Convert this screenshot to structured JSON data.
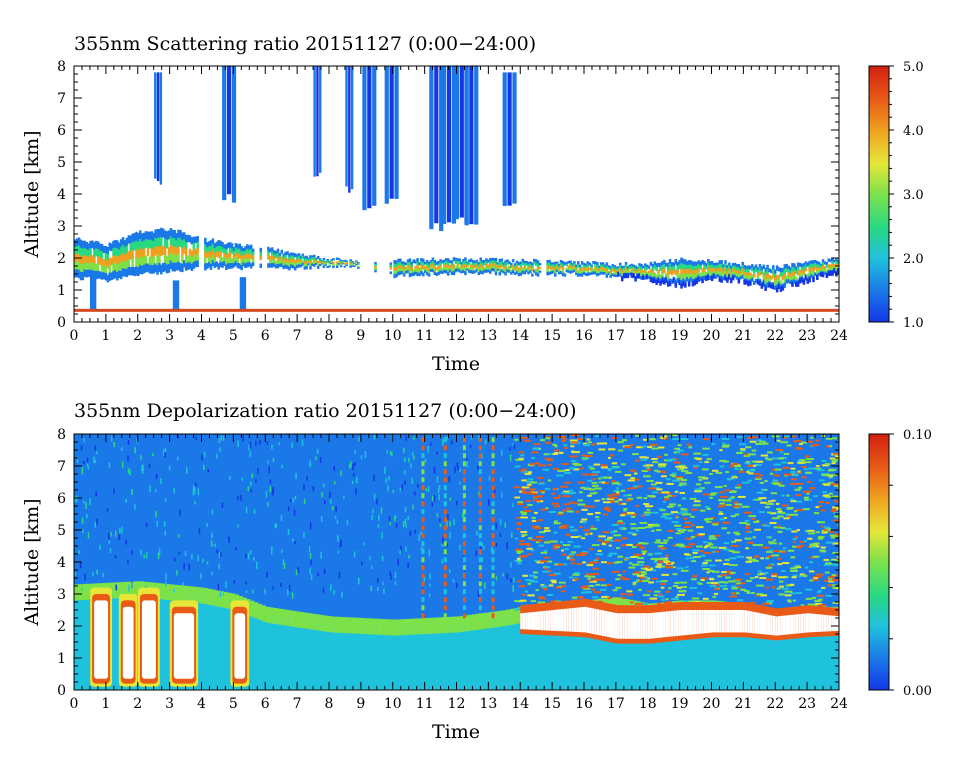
{
  "colors": {
    "scale": [
      "#1436e6",
      "#1a78e8",
      "#1fc2dc",
      "#29d982",
      "#7de24a",
      "#e6e638",
      "#f0a020",
      "#e85a16",
      "#d21e10"
    ],
    "axis": "#000000",
    "ground_line": "#d24a1e",
    "background": "#ffffff"
  },
  "chart_data": [
    {
      "type": "heatmap",
      "title": "355nm Scattering ratio  20151127 (0:00−24:00)",
      "xlabel": "Time",
      "ylabel": "Altitude [km]",
      "xlim": [
        0,
        24
      ],
      "ylim": [
        0,
        8
      ],
      "x_ticks": [
        "0",
        "1",
        "2",
        "3",
        "4",
        "5",
        "6",
        "7",
        "8",
        "9",
        "10",
        "11",
        "12",
        "13",
        "14",
        "15",
        "16",
        "17",
        "18",
        "19",
        "20",
        "21",
        "22",
        "23",
        "24"
      ],
      "y_ticks": [
        "0",
        "1",
        "2",
        "3",
        "4",
        "5",
        "6",
        "7",
        "8"
      ],
      "colorbar": {
        "min": 1.0,
        "max": 5.0,
        "ticks": [
          "1.0",
          "2.0",
          "3.0",
          "4.0",
          "5.0"
        ]
      },
      "layer_top_km": [
        [
          0,
          2.6
        ],
        [
          1,
          2.4
        ],
        [
          2,
          2.8
        ],
        [
          3,
          2.9
        ],
        [
          4,
          2.6
        ],
        [
          5,
          2.4
        ],
        [
          6,
          2.3
        ],
        [
          7,
          2.1
        ],
        [
          8,
          1.95
        ],
        [
          9,
          1.9
        ],
        [
          10,
          1.9
        ],
        [
          11,
          1.95
        ],
        [
          12,
          1.95
        ],
        [
          13,
          1.95
        ],
        [
          14,
          1.9
        ],
        [
          15,
          1.9
        ],
        [
          16,
          1.85
        ],
        [
          17,
          1.8
        ],
        [
          18,
          1.8
        ],
        [
          19,
          1.95
        ],
        [
          20,
          1.9
        ],
        [
          21,
          1.8
        ],
        [
          22,
          1.7
        ],
        [
          23,
          1.85
        ],
        [
          24,
          1.95
        ]
      ],
      "layer_base_km": [
        [
          0,
          1.4
        ],
        [
          1,
          1.3
        ],
        [
          2,
          1.5
        ],
        [
          3,
          1.6
        ],
        [
          4,
          1.7
        ],
        [
          5,
          1.7
        ],
        [
          6,
          1.7
        ],
        [
          7,
          1.7
        ],
        [
          8,
          1.75
        ],
        [
          9,
          1.75
        ],
        [
          10,
          1.45
        ],
        [
          11,
          1.5
        ],
        [
          12,
          1.55
        ],
        [
          13,
          1.55
        ],
        [
          14,
          1.5
        ],
        [
          15,
          1.5
        ],
        [
          16,
          1.5
        ],
        [
          17,
          1.45
        ],
        [
          18,
          1.35
        ],
        [
          19,
          1.2
        ],
        [
          20,
          1.4
        ],
        [
          21,
          1.3
        ],
        [
          22,
          1.05
        ],
        [
          23,
          1.35
        ],
        [
          24,
          1.6
        ]
      ],
      "high_cloud_streaks": [
        {
          "time": 2.6,
          "bottom_km": 4.2,
          "top_km": 7.8
        },
        {
          "time": 4.8,
          "bottom_km": 3.7,
          "top_km": 8.0
        },
        {
          "time": 7.6,
          "bottom_km": 4.5,
          "top_km": 8.0
        },
        {
          "time": 8.6,
          "bottom_km": 4.0,
          "top_km": 8.0
        },
        {
          "time": 9.2,
          "bottom_km": 3.4,
          "top_km": 8.0
        },
        {
          "time": 9.9,
          "bottom_km": 3.6,
          "top_km": 8.0
        },
        {
          "time": 11.3,
          "bottom_km": 2.8,
          "top_km": 8.0
        },
        {
          "time": 11.7,
          "bottom_km": 3.0,
          "top_km": 8.0
        },
        {
          "time": 12.1,
          "bottom_km": 3.0,
          "top_km": 8.0
        },
        {
          "time": 12.4,
          "bottom_km": 3.0,
          "top_km": 8.0
        },
        {
          "time": 13.6,
          "bottom_km": 3.6,
          "top_km": 7.8
        }
      ],
      "surface_line_km": 0.38
    },
    {
      "type": "heatmap",
      "title": "355nm Depolarization ratio  20151127 (0:00−24:00)",
      "xlabel": "Time",
      "ylabel": "Altitude [km]",
      "xlim": [
        0,
        24
      ],
      "ylim": [
        0,
        8
      ],
      "x_ticks": [
        "0",
        "1",
        "2",
        "3",
        "4",
        "5",
        "6",
        "7",
        "8",
        "9",
        "10",
        "11",
        "12",
        "13",
        "14",
        "15",
        "16",
        "17",
        "18",
        "19",
        "20",
        "21",
        "22",
        "23",
        "24"
      ],
      "y_ticks": [
        "0",
        "1",
        "2",
        "3",
        "4",
        "5",
        "6",
        "7",
        "8"
      ],
      "colorbar": {
        "min": 0.0,
        "max": 0.1,
        "ticks": [
          "0.00",
          "0.10"
        ]
      },
      "boundary_layer_top_km": [
        [
          0,
          3.1
        ],
        [
          2,
          3.2
        ],
        [
          4,
          3.0
        ],
        [
          5,
          2.8
        ],
        [
          6,
          2.4
        ],
        [
          8,
          2.1
        ],
        [
          10,
          2.0
        ],
        [
          12,
          2.1
        ],
        [
          13.5,
          2.3
        ],
        [
          14,
          2.4
        ],
        [
          16,
          2.6
        ],
        [
          17,
          2.7
        ],
        [
          18,
          2.5
        ],
        [
          19,
          2.6
        ],
        [
          20,
          2.6
        ],
        [
          21,
          2.5
        ],
        [
          22,
          2.3
        ],
        [
          23,
          2.4
        ],
        [
          24,
          2.4
        ]
      ],
      "dust_layer_top_km": [
        [
          14,
          2.4
        ],
        [
          15,
          2.5
        ],
        [
          16,
          2.6
        ],
        [
          17,
          2.4
        ],
        [
          18,
          2.4
        ],
        [
          19,
          2.5
        ],
        [
          20,
          2.5
        ],
        [
          21,
          2.5
        ],
        [
          22,
          2.3
        ],
        [
          23,
          2.4
        ],
        [
          24,
          2.3
        ]
      ],
      "dust_layer_base_km": [
        [
          14,
          1.9
        ],
        [
          15,
          1.85
        ],
        [
          16,
          1.8
        ],
        [
          17,
          1.6
        ],
        [
          18,
          1.6
        ],
        [
          19,
          1.7
        ],
        [
          20,
          1.8
        ],
        [
          21,
          1.8
        ],
        [
          22,
          1.7
        ],
        [
          23,
          1.8
        ],
        [
          24,
          1.85
        ]
      ],
      "high_depol_columns": [
        {
          "time_start": 0.6,
          "time_end": 1.1,
          "top_km": 3.0
        },
        {
          "time_start": 1.5,
          "time_end": 1.9,
          "top_km": 2.8
        },
        {
          "time_start": 2.1,
          "time_end": 2.6,
          "top_km": 3.0
        },
        {
          "time_start": 3.1,
          "time_end": 3.8,
          "top_km": 2.6
        },
        {
          "time_start": 5.0,
          "time_end": 5.4,
          "top_km": 2.6
        }
      ]
    }
  ]
}
